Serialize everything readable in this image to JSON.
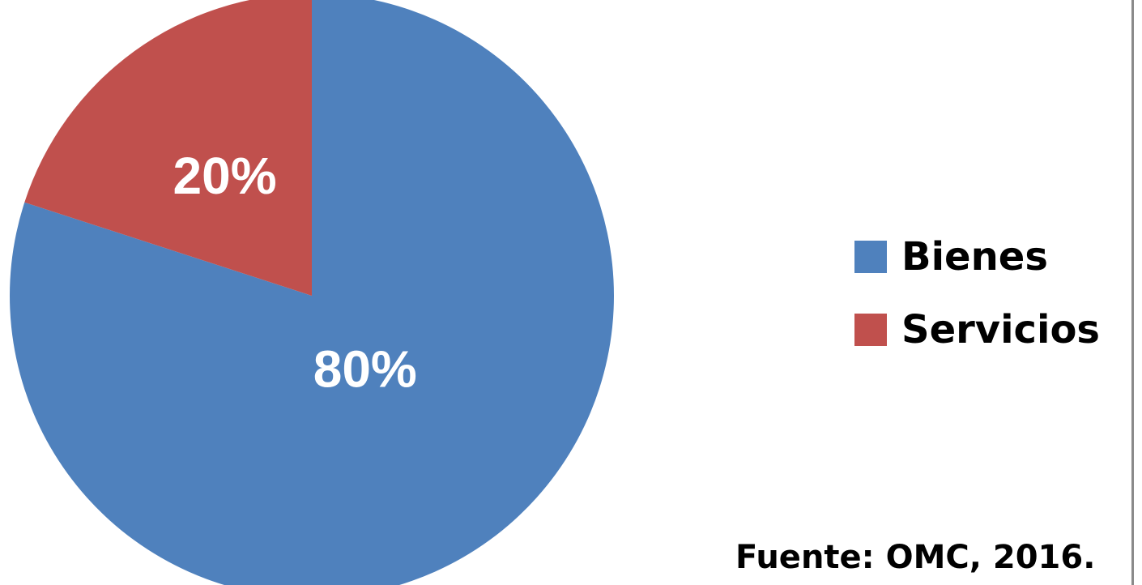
{
  "chart_data": {
    "type": "pie",
    "categories": [
      "Bienes",
      "Servicios"
    ],
    "values": [
      80,
      20
    ],
    "value_labels": [
      "80%",
      "20%"
    ],
    "colors": [
      "#4F81BD",
      "#C0504D"
    ],
    "start_angle_deg": 0,
    "direction": "clockwise",
    "legend_position": "right",
    "title": ""
  },
  "legend": {
    "items": [
      {
        "label": "Bienes",
        "color": "#4F81BD"
      },
      {
        "label": "Servicios",
        "color": "#C0504D"
      }
    ]
  },
  "source": "Fuente: OMC, 2016."
}
